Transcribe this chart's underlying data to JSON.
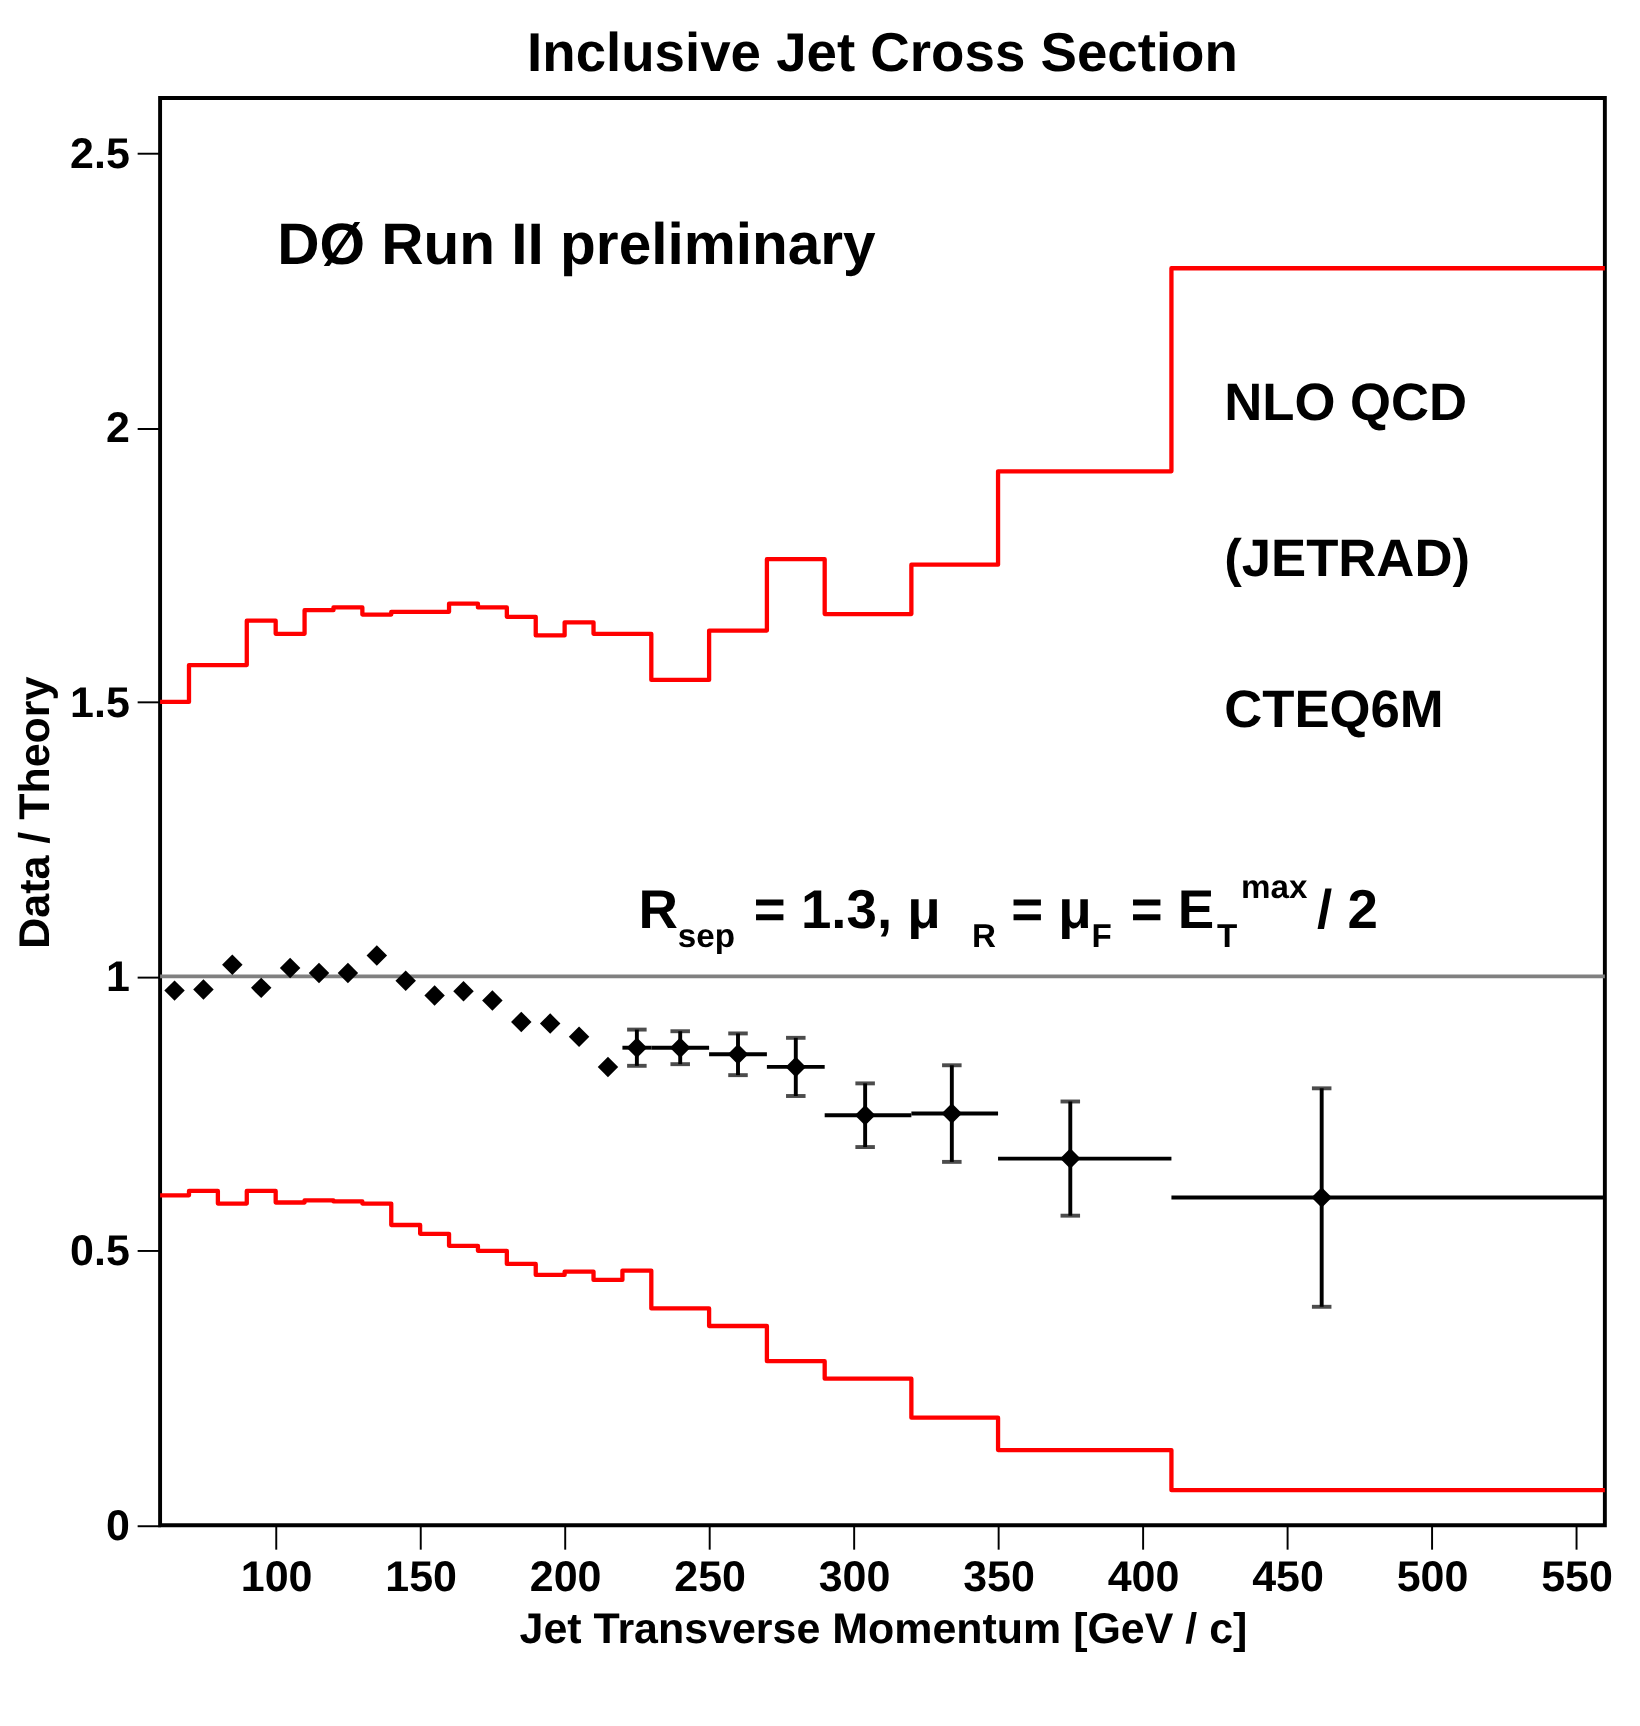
{
  "chart_data": {
    "type": "scatter",
    "title": "Inclusive Jet Cross Section",
    "xlabel": "Jet Transverse Momentum [GeV / c]",
    "ylabel": "Data / Theory",
    "xlim": [
      60,
      560
    ],
    "xticks": [
      100,
      150,
      200,
      250,
      300,
      350,
      400,
      450,
      500,
      550
    ],
    "ylim": [
      0,
      2.6
    ],
    "yticks": [
      0,
      0.5,
      1,
      1.5,
      2,
      2.5
    ],
    "grid": false,
    "annotations": [
      "DØ Run II preliminary",
      "NLO QCD",
      "(JETRAD)",
      "CTEQ6M",
      "R$_{sep}$ = 1.3,   μ$_{R}$ = μ$_{F}$ = E$_{T}$$^{max}$ / 2"
    ],
    "ref_lines": [
      {
        "axis": "y",
        "value": 1,
        "color": "#808080"
      }
    ],
    "series": [
      {
        "color": "#000000",
        "marker": "diamond",
        "x": [
          65,
          75,
          85,
          95,
          105,
          115,
          125,
          135,
          145,
          155,
          165,
          175,
          185,
          195,
          205,
          215,
          225,
          240,
          260,
          280,
          304,
          334,
          375,
          462
        ],
        "values": [
          0.974,
          0.976,
          1.021,
          0.979,
          1.015,
          1.006,
          1.006,
          1.038,
          0.992,
          0.965,
          0.973,
          0.956,
          0.917,
          0.914,
          0.89,
          0.835,
          0.87,
          0.87,
          0.858,
          0.835,
          0.747,
          0.75,
          0.668,
          0.597
        ],
        "errors": [
          null,
          null,
          null,
          null,
          null,
          null,
          null,
          null,
          null,
          null,
          null,
          null,
          null,
          null,
          null,
          null,
          0.033,
          0.03,
          0.038,
          0.053,
          0.058,
          0.088,
          0.104,
          0.199
        ],
        "xerrors": [
          null,
          null,
          null,
          null,
          null,
          null,
          null,
          null,
          null,
          null,
          null,
          null,
          null,
          null,
          null,
          null,
          [
            220,
            230
          ],
          [
            230,
            250
          ],
          [
            250,
            270
          ],
          [
            270,
            290
          ],
          [
            290,
            320
          ],
          [
            320,
            350
          ],
          [
            350,
            410
          ],
          [
            410,
            560
          ]
        ]
      },
      {
        "type": "step",
        "color": "#ff0000",
        "line_style": "solid",
        "x": [
          60,
          70,
          80,
          90,
          100,
          110,
          120,
          130,
          140,
          150,
          160,
          170,
          180,
          190,
          200,
          210,
          220,
          230,
          250,
          270,
          290,
          320,
          350,
          410,
          560
        ],
        "values": [
          1.5,
          1.567,
          1.567,
          1.648,
          1.624,
          1.667,
          1.672,
          1.659,
          1.664,
          1.664,
          1.679,
          1.672,
          1.655,
          1.621,
          1.645,
          1.624,
          1.624,
          1.54,
          1.63,
          1.76,
          1.66,
          1.75,
          1.92,
          2.29,
          2.29
        ]
      },
      {
        "type": "step",
        "color": "#ff0000",
        "line_style": "solid",
        "x": [
          60,
          70,
          80,
          90,
          100,
          110,
          120,
          130,
          140,
          150,
          160,
          170,
          180,
          190,
          200,
          210,
          220,
          230,
          250,
          270,
          290,
          320,
          350,
          410,
          560
        ],
        "values": [
          0.601,
          0.609,
          0.586,
          0.609,
          0.588,
          0.592,
          0.59,
          0.586,
          0.547,
          0.531,
          0.509,
          0.5,
          0.476,
          0.456,
          0.462,
          0.447,
          0.464,
          0.395,
          0.363,
          0.299,
          0.267,
          0.196,
          0.137,
          0.064,
          0.064
        ]
      }
    ]
  }
}
